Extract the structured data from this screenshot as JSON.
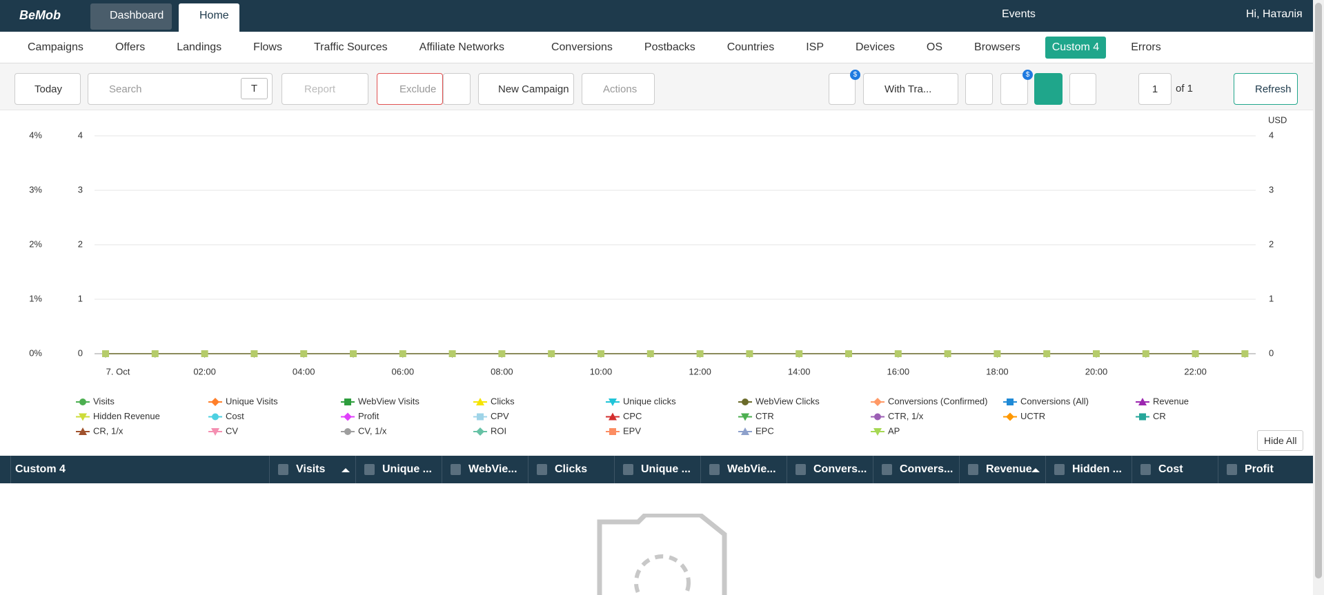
{
  "top_nav": {
    "logo": "BeMob",
    "tabs": [
      "Dashboard",
      "Home"
    ],
    "right": [
      "Events",
      "Hi, Наталія"
    ]
  },
  "main_nav": {
    "items": [
      "Campaigns",
      "Offers",
      "Landings",
      "Flows",
      "Traffic Sources",
      "Affiliate Networks",
      "Conversions",
      "Postbacks",
      "Countries",
      "ISP",
      "Devices",
      "OS",
      "Browsers",
      "Custom 4",
      "Errors"
    ],
    "active_index": 13
  },
  "toolbar": {
    "date": "Today",
    "search_placeholder": "Search",
    "search_type": "T",
    "report": "Report",
    "exclude": "Exclude",
    "new_campaign": "New Campaign",
    "actions": "Actions",
    "column_preset": "With Tra...",
    "page": "1",
    "page_total": "of 1",
    "refresh": "Refresh",
    "badge": "$"
  },
  "chart": {
    "type": "line",
    "currency": "USD",
    "ylim": [
      0,
      4
    ],
    "yticks": [
      0,
      1,
      2,
      3,
      4
    ],
    "y_pct_ticks": [
      {
        "value": 0,
        "label": "0%"
      },
      {
        "value": 1,
        "label": "1%"
      },
      {
        "value": 2,
        "label": "2%"
      },
      {
        "value": 3,
        "label": "3%"
      },
      {
        "value": 4,
        "label": "4%"
      }
    ],
    "y2lim": [
      0,
      4
    ],
    "y2ticks": [
      0,
      1,
      2,
      3,
      4
    ],
    "x_labels": [
      "7. Oct",
      null,
      "02:00",
      null,
      "04:00",
      null,
      "06:00",
      null,
      "08:00",
      null,
      "10:00",
      null,
      "12:00",
      null,
      "14:00",
      null,
      "16:00",
      null,
      "18:00",
      null,
      "20:00",
      null,
      "22:00",
      null
    ],
    "values": [
      0,
      0,
      0,
      0,
      0,
      0,
      0,
      0,
      0,
      0,
      0,
      0,
      0,
      0,
      0,
      0,
      0,
      0,
      0,
      0,
      0,
      0,
      0,
      0
    ],
    "legend": [
      {
        "name": "Visits",
        "color": "#4caf50",
        "marker": "circle"
      },
      {
        "name": "Unique Visits",
        "color": "#ff7f2a",
        "marker": "diamond"
      },
      {
        "name": "WebView Visits",
        "color": "#2e9e3e",
        "marker": "square"
      },
      {
        "name": "Clicks",
        "color": "#f5e400",
        "marker": "triangle"
      },
      {
        "name": "Unique clicks",
        "color": "#20c4d8",
        "marker": "triangle-down"
      },
      {
        "name": "WebView Clicks",
        "color": "#6b6b2a",
        "marker": "circle"
      },
      {
        "name": "Conversions (Confirmed)",
        "color": "#ff9966",
        "marker": "diamond"
      },
      {
        "name": "Conversions (All)",
        "color": "#1f8ad6",
        "marker": "square"
      },
      {
        "name": "Revenue",
        "color": "#9c27b0",
        "marker": "triangle"
      },
      {
        "name": "Hidden Revenue",
        "color": "#cddc39",
        "marker": "triangle-down"
      },
      {
        "name": "Cost",
        "color": "#4dd0e1",
        "marker": "circle"
      },
      {
        "name": "Profit",
        "color": "#e040fb",
        "marker": "diamond"
      },
      {
        "name": "CPV",
        "color": "#9fd4e8",
        "marker": "square"
      },
      {
        "name": "CPC",
        "color": "#d32f2f",
        "marker": "triangle"
      },
      {
        "name": "CTR",
        "color": "#4caf50",
        "marker": "triangle-down"
      },
      {
        "name": "CTR, 1/x",
        "color": "#9c5fb5",
        "marker": "circle"
      },
      {
        "name": "UCTR",
        "color": "#ff9800",
        "marker": "diamond"
      },
      {
        "name": "CR",
        "color": "#26a69a",
        "marker": "square"
      },
      {
        "name": "CR, 1/x",
        "color": "#a0522d",
        "marker": "triangle"
      },
      {
        "name": "CV",
        "color": "#f48fb1",
        "marker": "triangle-down"
      },
      {
        "name": "CV, 1/x",
        "color": "#9e9e9e",
        "marker": "circle"
      },
      {
        "name": "ROI",
        "color": "#66c2a5",
        "marker": "diamond"
      },
      {
        "name": "EPV",
        "color": "#fc8d62",
        "marker": "square"
      },
      {
        "name": "EPC",
        "color": "#8da0cb",
        "marker": "triangle"
      },
      {
        "name": "AP",
        "color": "#a6d854",
        "marker": "triangle-down"
      }
    ],
    "hide_all": "Hide All"
  },
  "table": {
    "columns": [
      "Custom 4",
      "Visits",
      "Unique ...",
      "WebVie...",
      "Clicks",
      "Unique ...",
      "WebVie...",
      "Convers...",
      "Convers...",
      "Revenue",
      "Hidden ...",
      "Cost",
      "Profit"
    ],
    "sorted_columns": [
      1,
      9
    ]
  }
}
